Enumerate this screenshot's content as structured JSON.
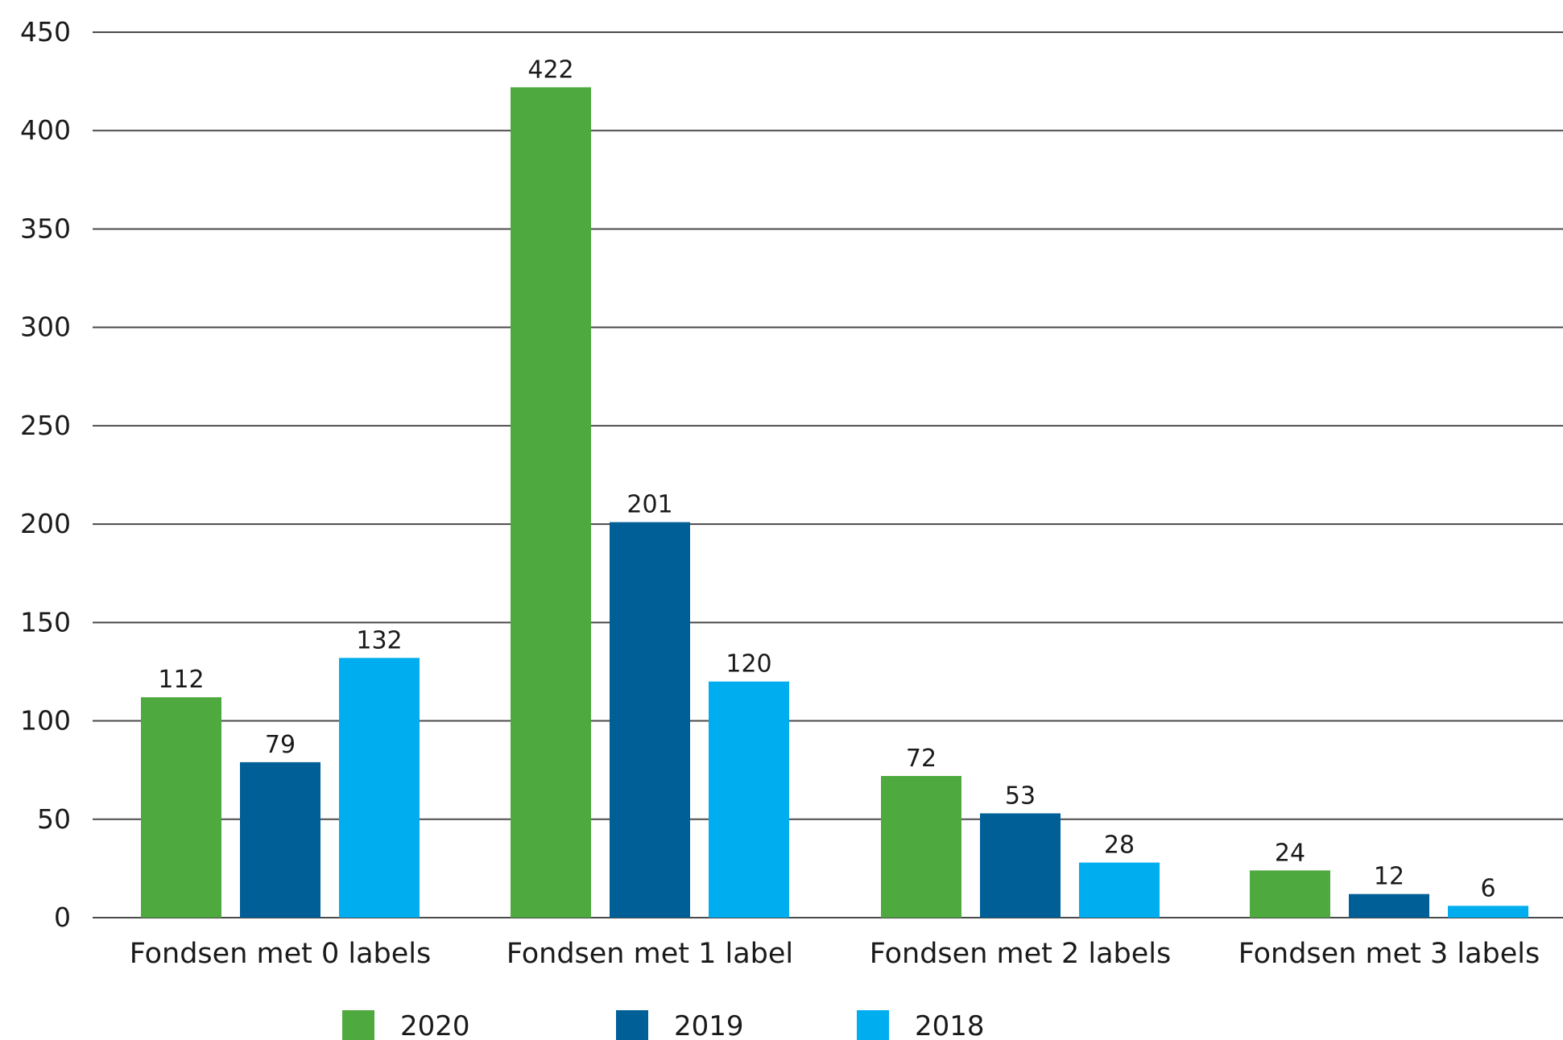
{
  "chart_data": {
    "type": "bar",
    "categories": [
      "Fondsen met 0 labels",
      "Fondsen met 1 label",
      "Fondsen met 2 labels",
      "Fondsen met 3 labels"
    ],
    "series": [
      {
        "name": "2020",
        "color": "#4ea93e",
        "values": [
          112,
          422,
          72,
          24
        ]
      },
      {
        "name": "2019",
        "color": "#005f96",
        "values": [
          79,
          201,
          53,
          12
        ]
      },
      {
        "name": "2018",
        "color": "#00aeef",
        "values": [
          132,
          120,
          28,
          6
        ]
      }
    ],
    "ylim": [
      0,
      450
    ],
    "yticks": [
      0,
      50,
      100,
      150,
      200,
      250,
      300,
      350,
      400,
      450
    ],
    "grid": true,
    "legend_position": "bottom",
    "title": "",
    "xlabel": "",
    "ylabel": ""
  }
}
